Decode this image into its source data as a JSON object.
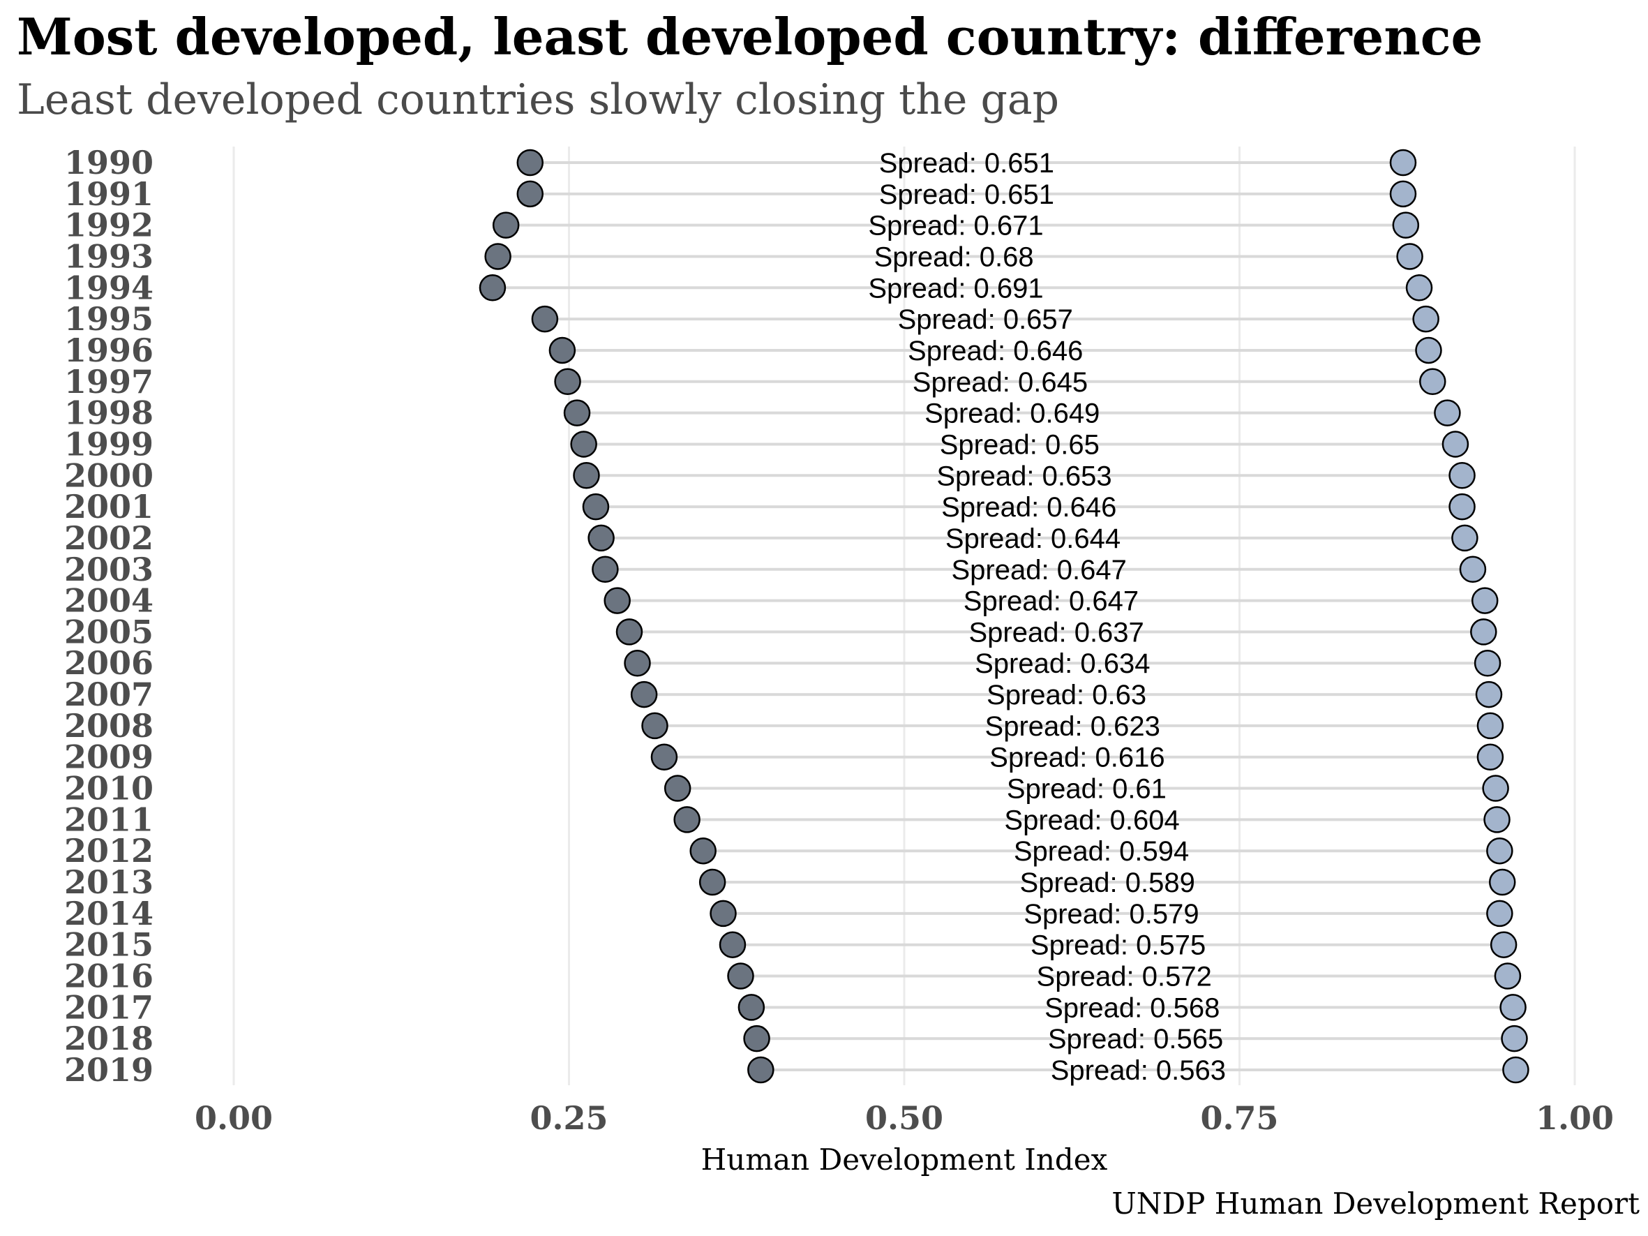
{
  "chart_data": {
    "type": "dumbbell",
    "title": "Most developed, least developed country: difference",
    "subtitle": "Least developed countries slowly closing the gap",
    "xlabel": "Human Development Index",
    "ylabel": "",
    "caption": "UNDP Human Development Report",
    "xlim": [
      -0.1,
      1.03
    ],
    "xticks": [
      "0.00",
      "0.25",
      "0.50",
      "0.75",
      "1.00"
    ],
    "xtick_values": [
      0.0,
      0.25,
      0.5,
      0.75,
      1.0
    ],
    "grid": true,
    "legend": "none",
    "colors": {
      "min_point": "#6b7480",
      "max_point": "#a3b4cc",
      "segment": "#d9d9d9",
      "point_edge": "#000000",
      "year_label": "#4d4d4d"
    },
    "rows": [
      {
        "year": "1990",
        "min": 0.221,
        "max": 0.872,
        "label": "Spread: 0.651"
      },
      {
        "year": "1991",
        "min": 0.221,
        "max": 0.872,
        "label": "Spread: 0.651"
      },
      {
        "year": "1992",
        "min": 0.203,
        "max": 0.874,
        "label": "Spread: 0.671"
      },
      {
        "year": "1993",
        "min": 0.197,
        "max": 0.877,
        "label": "Spread: 0.68"
      },
      {
        "year": "1994",
        "min": 0.193,
        "max": 0.884,
        "label": "Spread: 0.691"
      },
      {
        "year": "1995",
        "min": 0.232,
        "max": 0.889,
        "label": "Spread: 0.657"
      },
      {
        "year": "1996",
        "min": 0.245,
        "max": 0.891,
        "label": "Spread: 0.646"
      },
      {
        "year": "1997",
        "min": 0.249,
        "max": 0.894,
        "label": "Spread: 0.645"
      },
      {
        "year": "1998",
        "min": 0.256,
        "max": 0.905,
        "label": "Spread: 0.649"
      },
      {
        "year": "1999",
        "min": 0.261,
        "max": 0.911,
        "label": "Spread: 0.65"
      },
      {
        "year": "2000",
        "min": 0.263,
        "max": 0.916,
        "label": "Spread: 0.653"
      },
      {
        "year": "2001",
        "min": 0.27,
        "max": 0.916,
        "label": "Spread: 0.646"
      },
      {
        "year": "2002",
        "min": 0.274,
        "max": 0.918,
        "label": "Spread: 0.644"
      },
      {
        "year": "2003",
        "min": 0.277,
        "max": 0.924,
        "label": "Spread: 0.647"
      },
      {
        "year": "2004",
        "min": 0.286,
        "max": 0.933,
        "label": "Spread: 0.647"
      },
      {
        "year": "2005",
        "min": 0.295,
        "max": 0.932,
        "label": "Spread: 0.637"
      },
      {
        "year": "2006",
        "min": 0.301,
        "max": 0.935,
        "label": "Spread: 0.634"
      },
      {
        "year": "2007",
        "min": 0.306,
        "max": 0.936,
        "label": "Spread: 0.63"
      },
      {
        "year": "2008",
        "min": 0.314,
        "max": 0.937,
        "label": "Spread: 0.623"
      },
      {
        "year": "2009",
        "min": 0.321,
        "max": 0.937,
        "label": "Spread: 0.616"
      },
      {
        "year": "2010",
        "min": 0.331,
        "max": 0.941,
        "label": "Spread: 0.61"
      },
      {
        "year": "2011",
        "min": 0.338,
        "max": 0.942,
        "label": "Spread: 0.604"
      },
      {
        "year": "2012",
        "min": 0.35,
        "max": 0.944,
        "label": "Spread: 0.594"
      },
      {
        "year": "2013",
        "min": 0.357,
        "max": 0.946,
        "label": "Spread: 0.589"
      },
      {
        "year": "2014",
        "min": 0.365,
        "max": 0.944,
        "label": "Spread: 0.579"
      },
      {
        "year": "2015",
        "min": 0.372,
        "max": 0.947,
        "label": "Spread: 0.575"
      },
      {
        "year": "2016",
        "min": 0.378,
        "max": 0.95,
        "label": "Spread: 0.572"
      },
      {
        "year": "2017",
        "min": 0.386,
        "max": 0.954,
        "label": "Spread: 0.568"
      },
      {
        "year": "2018",
        "min": 0.39,
        "max": 0.955,
        "label": "Spread: 0.565"
      },
      {
        "year": "2019",
        "min": 0.393,
        "max": 0.956,
        "label": "Spread: 0.563"
      }
    ]
  }
}
